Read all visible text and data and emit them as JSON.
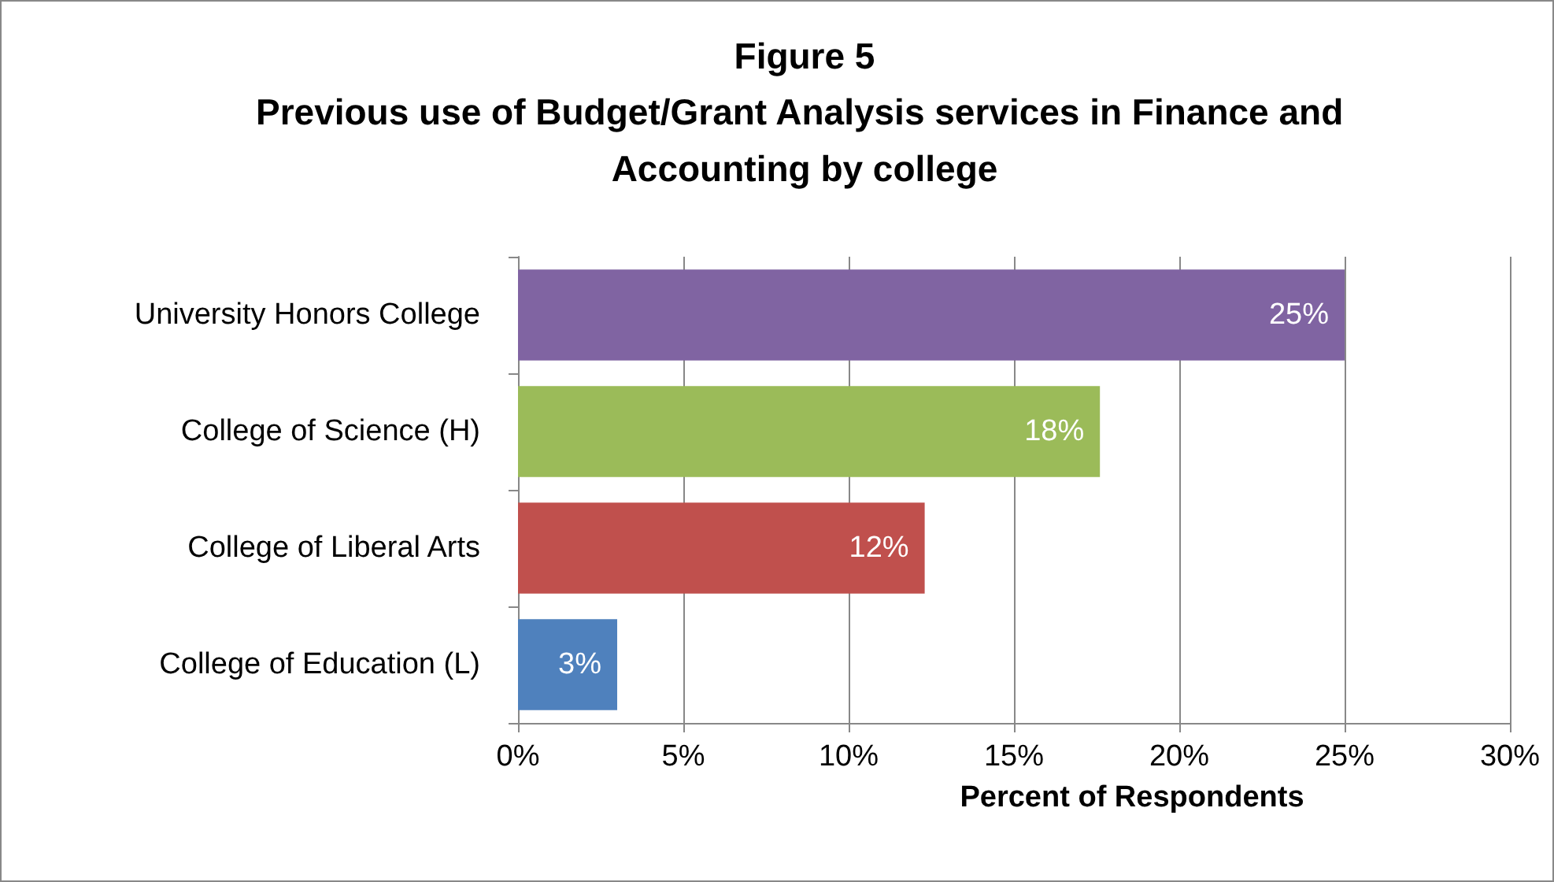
{
  "chart_data": {
    "type": "bar",
    "orientation": "horizontal",
    "title": "Figure 5",
    "subtitle": "Previous use of Budget/Grant Analysis services in Finance and Accounting by college",
    "xlabel": "Percent of Respondents",
    "categories": [
      "University Honors College",
      "College of Science (H)",
      "College of Liberal Arts",
      "College of Education (L)"
    ],
    "values": [
      25,
      17.6,
      12.3,
      3
    ],
    "colors": [
      "#8064a2",
      "#9bbb59",
      "#c0504d",
      "#4f81bd"
    ],
    "value_labels": [
      "25%",
      "18%",
      "12%",
      "3%"
    ],
    "xlim": [
      0,
      30
    ],
    "xticks": [
      {
        "value": 0,
        "label": "0%"
      },
      {
        "value": 5,
        "label": "5%"
      },
      {
        "value": 10,
        "label": "10%"
      },
      {
        "value": 15,
        "label": "15%"
      },
      {
        "value": 20,
        "label": "20%"
      },
      {
        "value": 25,
        "label": "25%"
      },
      {
        "value": 30,
        "label": "30%"
      }
    ],
    "grid": "x"
  }
}
